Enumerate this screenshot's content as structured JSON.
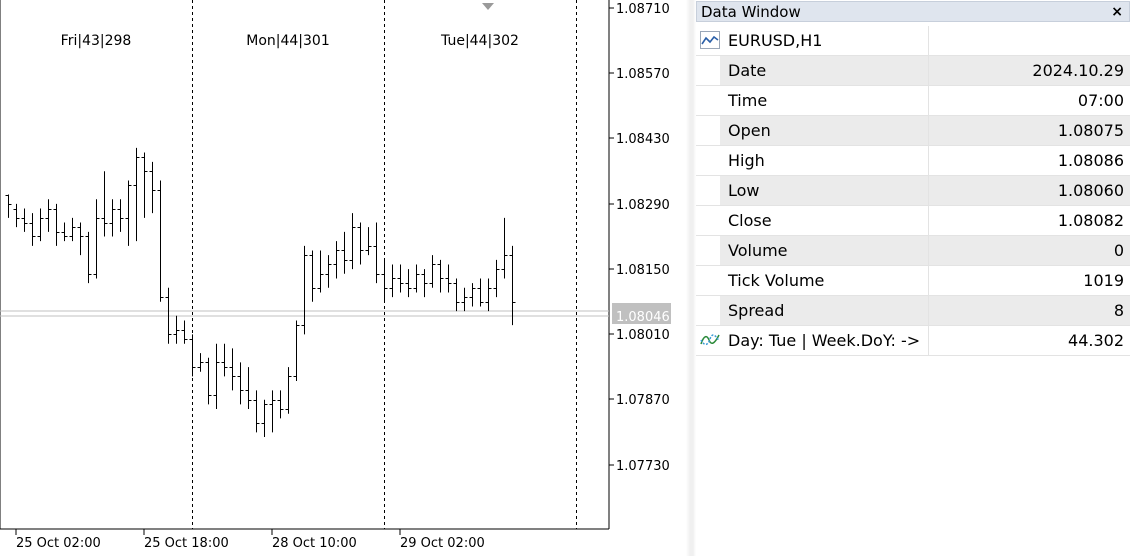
{
  "chart": {
    "sessions": [
      {
        "label": "Fri|43|298"
      },
      {
        "label": "Mon|44|301"
      },
      {
        "label": "Tue|44|302"
      }
    ],
    "price_axis": [
      "1.08710",
      "1.08570",
      "1.08430",
      "1.08290",
      "1.08150",
      "1.08010",
      "1.07870",
      "1.07730"
    ],
    "current_price_label": "1.08046",
    "time_axis": [
      "25 Oct 02:00",
      "25 Oct 18:00",
      "28 Oct 10:00",
      "29 Oct 02:00"
    ],
    "colors": {
      "bars": "#000000",
      "grid_separator": "#000000",
      "price_tag_bg": "#c0c0c0"
    }
  },
  "chart_data": {
    "type": "ohlc",
    "symbol": "EURUSD",
    "timeframe": "H1",
    "ylim": [
      1.0766,
      1.0871
    ],
    "bars": [
      {
        "o": 1.0831,
        "h": 1.0831,
        "l": 1.0826,
        "c": 1.0829
      },
      {
        "o": 1.0828,
        "h": 1.0829,
        "l": 1.0824,
        "c": 1.0826
      },
      {
        "o": 1.0826,
        "h": 1.0828,
        "l": 1.0823,
        "c": 1.0825
      },
      {
        "o": 1.0825,
        "h": 1.0827,
        "l": 1.082,
        "c": 1.0822
      },
      {
        "o": 1.0822,
        "h": 1.0828,
        "l": 1.0821,
        "c": 1.0826
      },
      {
        "o": 1.0826,
        "h": 1.083,
        "l": 1.0823,
        "c": 1.0828
      },
      {
        "o": 1.0828,
        "h": 1.0829,
        "l": 1.082,
        "c": 1.0823
      },
      {
        "o": 1.0823,
        "h": 1.0825,
        "l": 1.0821,
        "c": 1.0822
      },
      {
        "o": 1.0822,
        "h": 1.0826,
        "l": 1.0821,
        "c": 1.0824
      },
      {
        "o": 1.0824,
        "h": 1.0825,
        "l": 1.0818,
        "c": 1.0822
      },
      {
        "o": 1.0822,
        "h": 1.0823,
        "l": 1.0812,
        "c": 1.0814
      },
      {
        "o": 1.0814,
        "h": 1.083,
        "l": 1.0813,
        "c": 1.0826
      },
      {
        "o": 1.0826,
        "h": 1.0836,
        "l": 1.0822,
        "c": 1.0825
      },
      {
        "o": 1.0825,
        "h": 1.083,
        "l": 1.0822,
        "c": 1.0828
      },
      {
        "o": 1.0828,
        "h": 1.083,
        "l": 1.0823,
        "c": 1.0826
      },
      {
        "o": 1.0826,
        "h": 1.0834,
        "l": 1.082,
        "c": 1.0833
      },
      {
        "o": 1.0833,
        "h": 1.0841,
        "l": 1.0821,
        "c": 1.0839
      },
      {
        "o": 1.0839,
        "h": 1.084,
        "l": 1.0826,
        "c": 1.0836
      },
      {
        "o": 1.0836,
        "h": 1.0838,
        "l": 1.0827,
        "c": 1.0832
      },
      {
        "o": 1.0832,
        "h": 1.0834,
        "l": 1.0808,
        "c": 1.0809
      },
      {
        "o": 1.0809,
        "h": 1.0811,
        "l": 1.0799,
        "c": 1.0801
      },
      {
        "o": 1.0801,
        "h": 1.0805,
        "l": 1.0799,
        "c": 1.0802
      },
      {
        "o": 1.0802,
        "h": 1.0804,
        "l": 1.0799,
        "c": 1.08
      },
      {
        "o": 1.08,
        "h": 1.0801,
        "l": 1.0792,
        "c": 1.0794
      },
      {
        "o": 1.0794,
        "h": 1.0797,
        "l": 1.0793,
        "c": 1.0795
      },
      {
        "o": 1.0795,
        "h": 1.0796,
        "l": 1.0786,
        "c": 1.0788
      },
      {
        "o": 1.0788,
        "h": 1.0799,
        "l": 1.0785,
        "c": 1.0795
      },
      {
        "o": 1.0795,
        "h": 1.0799,
        "l": 1.0792,
        "c": 1.0794
      },
      {
        "o": 1.0794,
        "h": 1.0798,
        "l": 1.0789,
        "c": 1.0792
      },
      {
        "o": 1.0792,
        "h": 1.0795,
        "l": 1.0786,
        "c": 1.0789
      },
      {
        "o": 1.0789,
        "h": 1.0794,
        "l": 1.0785,
        "c": 1.0787
      },
      {
        "o": 1.0787,
        "h": 1.0789,
        "l": 1.078,
        "c": 1.0782
      },
      {
        "o": 1.0782,
        "h": 1.0787,
        "l": 1.0779,
        "c": 1.0786
      },
      {
        "o": 1.0786,
        "h": 1.0789,
        "l": 1.078,
        "c": 1.0787
      },
      {
        "o": 1.0787,
        "h": 1.0789,
        "l": 1.0783,
        "c": 1.0785
      },
      {
        "o": 1.0785,
        "h": 1.0794,
        "l": 1.0784,
        "c": 1.0792
      },
      {
        "o": 1.0792,
        "h": 1.0804,
        "l": 1.0791,
        "c": 1.0803
      },
      {
        "o": 1.0803,
        "h": 1.082,
        "l": 1.0801,
        "c": 1.0818
      },
      {
        "o": 1.0818,
        "h": 1.0819,
        "l": 1.0808,
        "c": 1.0811
      },
      {
        "o": 1.0811,
        "h": 1.0819,
        "l": 1.081,
        "c": 1.0814
      },
      {
        "o": 1.0814,
        "h": 1.0818,
        "l": 1.0811,
        "c": 1.0816
      },
      {
        "o": 1.0816,
        "h": 1.0821,
        "l": 1.0813,
        "c": 1.0819
      },
      {
        "o": 1.0819,
        "h": 1.0823,
        "l": 1.0814,
        "c": 1.0817
      },
      {
        "o": 1.0817,
        "h": 1.0827,
        "l": 1.0815,
        "c": 1.0824
      },
      {
        "o": 1.0824,
        "h": 1.0825,
        "l": 1.0816,
        "c": 1.0819
      },
      {
        "o": 1.0819,
        "h": 1.0824,
        "l": 1.0818,
        "c": 1.082
      },
      {
        "o": 1.082,
        "h": 1.0825,
        "l": 1.0812,
        "c": 1.0814
      },
      {
        "o": 1.0814,
        "h": 1.0817,
        "l": 1.0808,
        "c": 1.0811
      },
      {
        "o": 1.0811,
        "h": 1.0816,
        "l": 1.0809,
        "c": 1.0813
      },
      {
        "o": 1.0813,
        "h": 1.0816,
        "l": 1.081,
        "c": 1.0812
      },
      {
        "o": 1.0812,
        "h": 1.0815,
        "l": 1.0809,
        "c": 1.0811
      },
      {
        "o": 1.0811,
        "h": 1.0816,
        "l": 1.081,
        "c": 1.0814
      },
      {
        "o": 1.0814,
        "h": 1.0815,
        "l": 1.0809,
        "c": 1.0812
      },
      {
        "o": 1.0812,
        "h": 1.0818,
        "l": 1.0811,
        "c": 1.0816
      },
      {
        "o": 1.0816,
        "h": 1.0817,
        "l": 1.081,
        "c": 1.0813
      },
      {
        "o": 1.0813,
        "h": 1.0816,
        "l": 1.081,
        "c": 1.0812
      },
      {
        "o": 1.0812,
        "h": 1.0813,
        "l": 1.0806,
        "c": 1.0808
      },
      {
        "o": 1.0808,
        "h": 1.0811,
        "l": 1.0806,
        "c": 1.0809
      },
      {
        "o": 1.0809,
        "h": 1.0812,
        "l": 1.0807,
        "c": 1.0811
      },
      {
        "o": 1.0811,
        "h": 1.0813,
        "l": 1.0807,
        "c": 1.0808
      },
      {
        "o": 1.0808,
        "h": 1.0813,
        "l": 1.0806,
        "c": 1.0811
      },
      {
        "o": 1.0811,
        "h": 1.0817,
        "l": 1.0809,
        "c": 1.0815
      },
      {
        "o": 1.0815,
        "h": 1.0826,
        "l": 1.0813,
        "c": 1.0818
      },
      {
        "o": 1.0818,
        "h": 1.082,
        "l": 1.0803,
        "c": 1.0808
      }
    ]
  },
  "data_window": {
    "title": "Data Window",
    "close_glyph": "×",
    "header_label": "EURUSD,H1",
    "rows": [
      {
        "label": "Date",
        "value": "2024.10.29"
      },
      {
        "label": "Time",
        "value": "07:00"
      },
      {
        "label": "Open",
        "value": "1.08075"
      },
      {
        "label": "High",
        "value": "1.08086"
      },
      {
        "label": "Low",
        "value": "1.08060"
      },
      {
        "label": "Close",
        "value": "1.08082"
      },
      {
        "label": "Volume",
        "value": "0"
      },
      {
        "label": "Tick Volume",
        "value": "1019"
      },
      {
        "label": "Spread",
        "value": "8"
      }
    ],
    "indicator": {
      "label": "Day: Tue | Week.DoY: ->",
      "value": "44.302",
      "icon": "custom-indicator-icon"
    },
    "header_icon": "line-chart-icon"
  }
}
